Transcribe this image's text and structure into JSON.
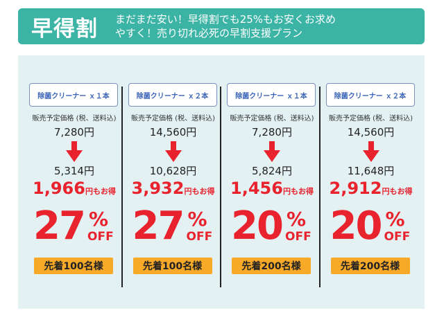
{
  "banner": {
    "title": "早得割",
    "line1": "まだまだ安い！早得割でも25%もお安くお求め",
    "line2": "やすく！売り切れ必死の早割支援プラン",
    "color": "#3bb3a5"
  },
  "panel": {
    "background": "#e3f1f3"
  },
  "plans": [
    {
      "product": "除菌クリーナー ｘ１本",
      "price_caption": "販売予定価格 (税、送料込)",
      "original_price": "7,280円",
      "sale_price": "5,314円",
      "savings_amount": "1,966",
      "savings_suffix": "円もお得",
      "discount": "27",
      "percent_sign": "%",
      "off_label": "OFF",
      "badge": "先着100名様",
      "arrow_icon": "down-arrow-icon"
    },
    {
      "product": "除菌クリーナー ｘ２本",
      "price_caption": "販売予定価格 (税、送料込)",
      "original_price": "14,560円",
      "sale_price": "10,628円",
      "savings_amount": "3,932",
      "savings_suffix": "円もお得",
      "discount": "27",
      "percent_sign": "%",
      "off_label": "OFF",
      "badge": "先着100名様",
      "arrow_icon": "down-arrow-icon"
    },
    {
      "product": "除菌クリーナー ｘ１本",
      "price_caption": "販売予定価格 (税、送料込)",
      "original_price": "7,280円",
      "sale_price": "5,824円",
      "savings_amount": "1,456",
      "savings_suffix": "円もお得",
      "discount": "20",
      "percent_sign": "%",
      "off_label": "OFF",
      "badge": "先着200名様",
      "arrow_icon": "down-arrow-icon"
    },
    {
      "product": "除菌クリーナー ｘ２本",
      "price_caption": "販売予定価格 (税、送料込)",
      "original_price": "14,560円",
      "sale_price": "11,648円",
      "savings_amount": "2,912",
      "savings_suffix": "円もお得",
      "discount": "20",
      "percent_sign": "%",
      "off_label": "OFF",
      "badge": "先着200名様",
      "arrow_icon": "down-arrow-icon"
    }
  ],
  "colors": {
    "accent_red": "#e8232e",
    "badge_orange": "#f7a928",
    "product_blue": "#3a64b8"
  }
}
